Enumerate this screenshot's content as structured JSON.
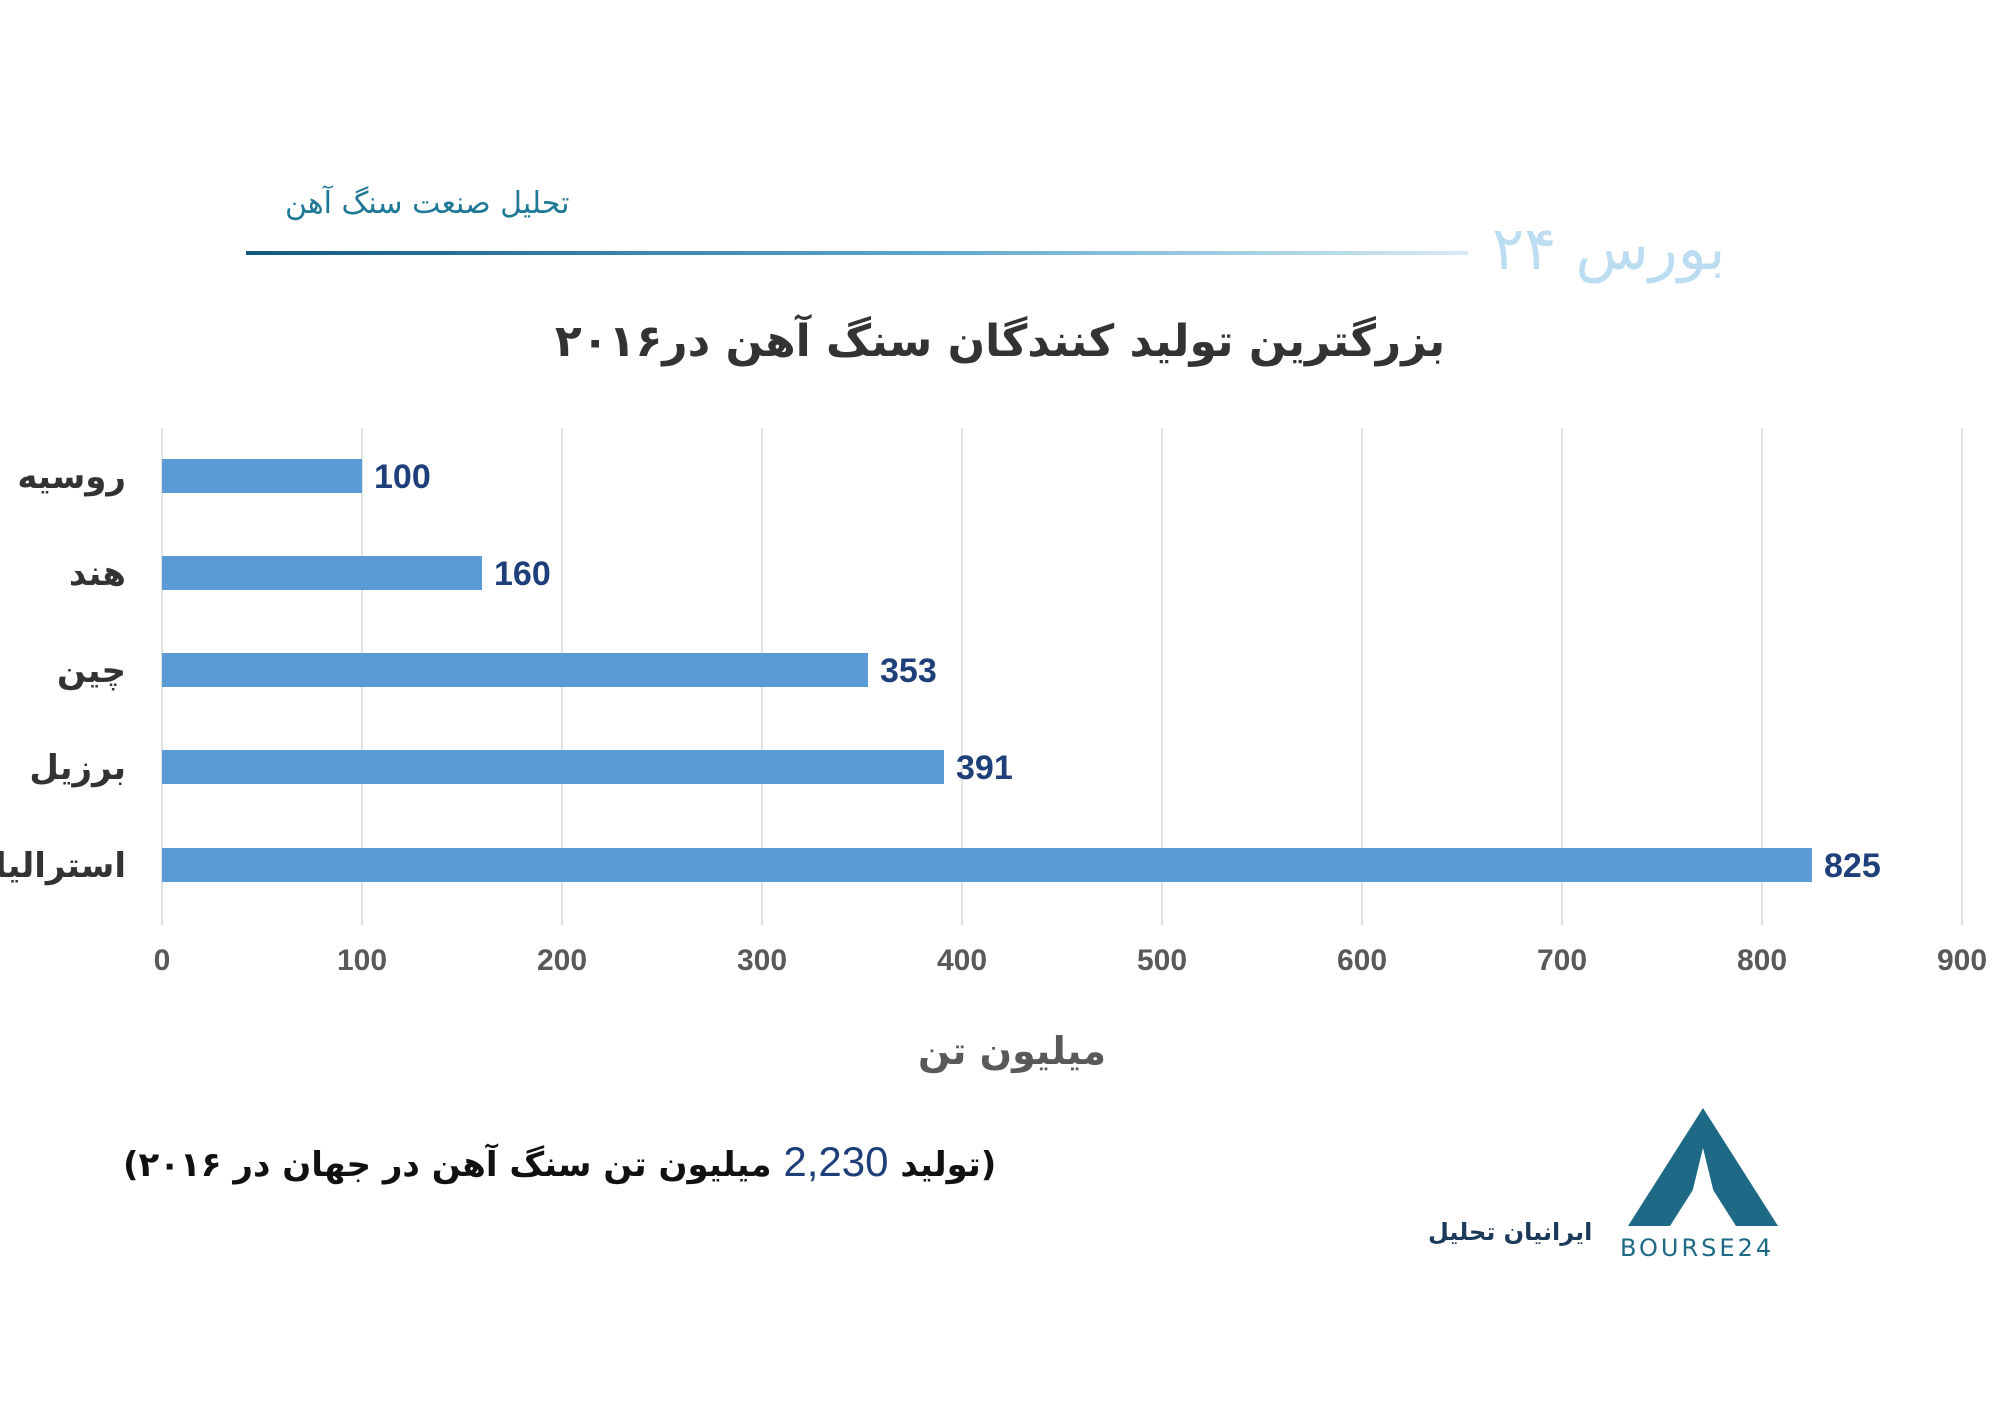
{
  "header": {
    "section_title": "تحلیل صنعت سنگ آهن",
    "logo_text": "بورس ۲۴"
  },
  "chart_data": {
    "type": "bar",
    "orientation": "horizontal",
    "title": "بزرگترین تولید کنندگان سنگ آهن در۲۰۱۶",
    "xlabel": "میلیون تن",
    "ylabel": "",
    "categories": [
      "روسیه",
      "هند",
      "چین",
      "برزیل",
      "استرالیا"
    ],
    "values": [
      100,
      160,
      353,
      391,
      825
    ],
    "data_labels": [
      "100",
      "160",
      "353",
      "391",
      "825"
    ],
    "xlim": [
      0,
      900
    ],
    "x_ticks": [
      0,
      100,
      200,
      300,
      400,
      500,
      600,
      700,
      800,
      900
    ],
    "grid": true,
    "bar_color": "#5b9bd5",
    "label_color": "#1f3f7a"
  },
  "footnote": {
    "prefix": "(تولید",
    "value": "2,230",
    "suffix": "میلیون تن سنگ آهن در جهان در ۲۰۱۶)"
  },
  "brand": {
    "label": "ایرانیان تحلیل",
    "wordmark": "BOURSE24",
    "primary_color": "#1e6a86"
  }
}
